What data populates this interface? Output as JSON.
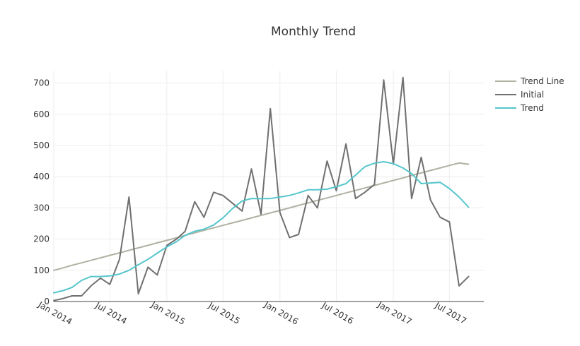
{
  "chart_data": {
    "type": "line",
    "title": "Monthly Trend",
    "xlabel": "",
    "ylabel": "",
    "ylim": [
      0,
      740
    ],
    "xlim": [
      "2014-01-01",
      "2017-10-20"
    ],
    "grid": true,
    "legend_position": "top-right",
    "x_ticks": [
      {
        "label": "Jan 2014",
        "value": "2014-01-01"
      },
      {
        "label": "Jul 2014",
        "value": "2014-07-01"
      },
      {
        "label": "Jan 2015",
        "value": "2015-01-01"
      },
      {
        "label": "Jul 2015",
        "value": "2015-07-01"
      },
      {
        "label": "Jan 2016",
        "value": "2016-01-01"
      },
      {
        "label": "Jul 2016",
        "value": "2016-07-01"
      },
      {
        "label": "Jan 2017",
        "value": "2017-01-01"
      },
      {
        "label": "Jul 2017",
        "value": "2017-07-01"
      }
    ],
    "y_ticks": [
      0,
      100,
      200,
      300,
      400,
      500,
      600,
      700
    ],
    "x": [
      "2014-01-01",
      "2014-02-01",
      "2014-03-01",
      "2014-04-01",
      "2014-05-01",
      "2014-06-01",
      "2014-07-01",
      "2014-08-01",
      "2014-09-01",
      "2014-10-01",
      "2014-11-01",
      "2014-12-01",
      "2015-01-01",
      "2015-02-01",
      "2015-03-01",
      "2015-04-01",
      "2015-05-01",
      "2015-06-01",
      "2015-07-01",
      "2015-08-01",
      "2015-09-01",
      "2015-10-01",
      "2015-11-01",
      "2015-12-01",
      "2016-01-01",
      "2016-02-01",
      "2016-03-01",
      "2016-04-01",
      "2016-05-01",
      "2016-06-01",
      "2016-07-01",
      "2016-08-01",
      "2016-09-01",
      "2016-10-01",
      "2016-11-01",
      "2016-12-01",
      "2017-01-01",
      "2017-02-01",
      "2017-03-01",
      "2017-04-01",
      "2017-05-01",
      "2017-06-01",
      "2017-07-01",
      "2017-08-01",
      "2017-09-01"
    ],
    "series": [
      {
        "name": "Trend Line",
        "color": "#b2b1a3",
        "width": 2,
        "values": [
          100,
          108,
          116,
          124,
          132,
          140,
          148,
          156,
          164,
          172,
          180,
          188,
          196,
          204,
          212,
          220,
          228,
          236,
          244,
          252,
          260,
          268,
          276,
          284,
          292,
          300,
          308,
          316,
          324,
          332,
          340,
          348,
          356,
          364,
          372,
          380,
          388,
          396,
          404,
          412,
          420,
          428,
          436,
          444,
          440
        ]
      },
      {
        "name": "Initial",
        "color": "#707070",
        "width": 2,
        "values": [
          3,
          10,
          18,
          18,
          50,
          75,
          55,
          135,
          335,
          25,
          110,
          85,
          180,
          200,
          225,
          320,
          270,
          350,
          340,
          315,
          290,
          425,
          280,
          618,
          285,
          205,
          215,
          340,
          300,
          450,
          355,
          505,
          330,
          350,
          375,
          710,
          440,
          718,
          330,
          462,
          325,
          270,
          255,
          50,
          80
        ]
      },
      {
        "name": "Trend",
        "color": "#55c6cc",
        "width": 2,
        "values": [
          28,
          35,
          45,
          68,
          80,
          80,
          82,
          88,
          100,
          118,
          135,
          155,
          175,
          192,
          212,
          225,
          232,
          245,
          268,
          298,
          322,
          330,
          330,
          330,
          335,
          340,
          348,
          358,
          358,
          360,
          368,
          378,
          405,
          432,
          443,
          448,
          442,
          428,
          410,
          378,
          380,
          382,
          362,
          335,
          302
        ]
      }
    ]
  },
  "colors": {
    "grid": "#eeeeee",
    "zero_line": "#444444",
    "text": "#333333"
  }
}
